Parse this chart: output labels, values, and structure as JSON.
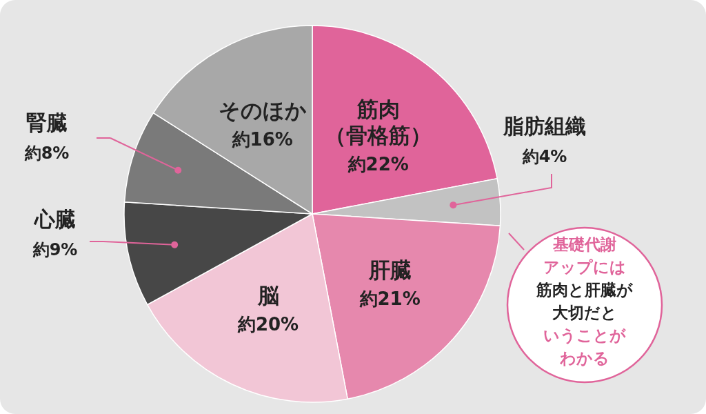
{
  "chart_data": {
    "type": "pie",
    "categories": [
      "筋肉（骨格筋）",
      "脂肪組織",
      "肝臓",
      "脳",
      "心臓",
      "腎臓",
      "そのほか"
    ],
    "values": [
      22,
      4,
      21,
      20,
      9,
      8,
      16
    ],
    "colors": [
      "#e0649a",
      "#c2c2c2",
      "#e688ad",
      "#f2c6d6",
      "#474747",
      "#7a7a7a",
      "#a8a8a8"
    ],
    "value_labels": [
      "約22%",
      "約4%",
      "約21%",
      "約20%",
      "約9%",
      "約8%",
      "約16%"
    ],
    "annotations": [
      "基礎代謝アップには筋肉と肝臓が大切だということがわかる"
    ]
  }
}
